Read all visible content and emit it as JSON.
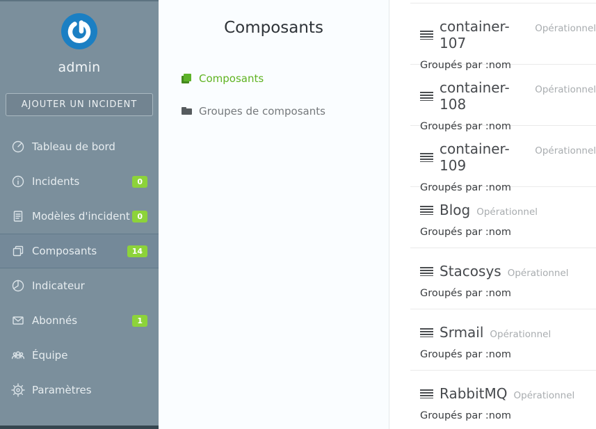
{
  "colors": {
    "sidebar_bg": "#7b8f9c",
    "sidebar_active_bg": "#748999",
    "badge_green": "#8dd33a",
    "link_green": "#5fb321",
    "logo_blue": "#1b7fc3",
    "footer_strip": "#35464f"
  },
  "sidebar": {
    "username": "admin",
    "add_incident_label": "AJOUTER UN INCIDENT",
    "items": [
      {
        "name": "tableau-de-bord",
        "label": "Tableau de bord",
        "icon": "gauge-icon",
        "badge": null,
        "active": false
      },
      {
        "name": "incidents",
        "label": "Incidents",
        "icon": "info-icon",
        "badge": "0",
        "active": false
      },
      {
        "name": "modeles-incident",
        "label": "Modèles d'incident",
        "icon": "document-icon",
        "badge": "0",
        "active": false
      },
      {
        "name": "composants",
        "label": "Composants",
        "icon": "copy-icon",
        "badge": "14",
        "active": true
      },
      {
        "name": "indicateur",
        "label": "Indicateur",
        "icon": "pie-chart-icon",
        "badge": null,
        "active": false
      },
      {
        "name": "abonnes",
        "label": "Abonnés",
        "icon": "envelope-icon",
        "badge": "1",
        "active": false
      },
      {
        "name": "equipe",
        "label": "Équipe",
        "icon": "people-icon",
        "badge": null,
        "active": false
      },
      {
        "name": "parametres",
        "label": "Paramètres",
        "icon": "gear-icon",
        "badge": null,
        "active": false
      }
    ]
  },
  "nav_panel": {
    "title": "Composants",
    "links": [
      {
        "name": "composants",
        "label": "Composants",
        "icon": "book-icon",
        "active": true
      },
      {
        "name": "groupes-de-composants",
        "label": "Groupes de composants",
        "icon": "folder-icon",
        "active": false
      }
    ]
  },
  "components": {
    "items": [
      {
        "name": "container-107",
        "status": "Opérationnel",
        "group_note": "Groupés par :nom"
      },
      {
        "name": "container-108",
        "status": "Opérationnel",
        "group_note": "Groupés par :nom"
      },
      {
        "name": "container-109",
        "status": "Opérationnel",
        "group_note": "Groupés par :nom"
      },
      {
        "name": "Blog",
        "status": "Opérationnel",
        "group_note": "Groupés par :nom"
      },
      {
        "name": "Stacosys",
        "status": "Opérationnel",
        "group_note": "Groupés par :nom"
      },
      {
        "name": "Srmail",
        "status": "Opérationnel",
        "group_note": "Groupés par :nom"
      },
      {
        "name": "RabbitMQ",
        "status": "Opérationnel",
        "group_note": "Groupés par :nom"
      }
    ]
  }
}
